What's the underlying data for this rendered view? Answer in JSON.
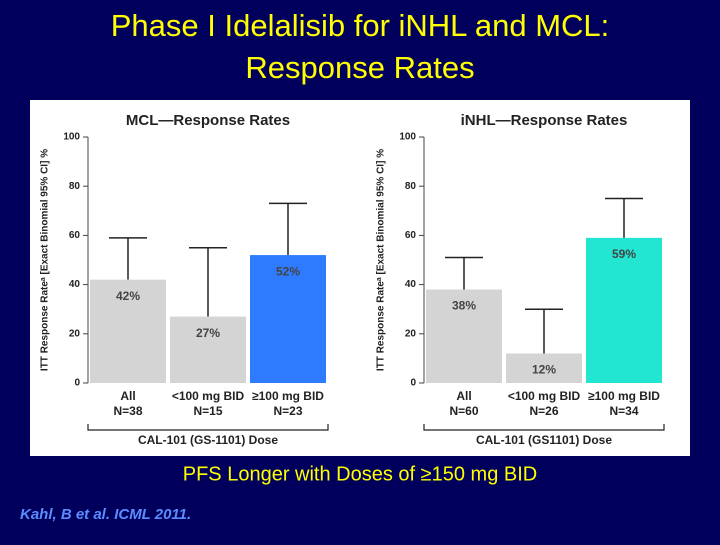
{
  "title": [
    "Phase I Idelalisib for iNHL and MCL:",
    "Response Rates"
  ],
  "subtitle": "PFS Longer with Doses of ≥150 mg BID",
  "citation": "Kahl, B et al. ICML 2011.",
  "chart_data": [
    {
      "type": "bar",
      "title": "MCL—Response Rates",
      "ylabel": "ITT Response Rateᵃ [Exact Binomial 95% CI] %",
      "xlabel": "CAL-101 (GS-1101) Dose",
      "categories": [
        "All",
        "<100 mg BID",
        "≥100 mg BID"
      ],
      "category_counts": [
        "N=38",
        "N=15",
        "N=23"
      ],
      "values": [
        42,
        27,
        52
      ],
      "value_labels": [
        "42%",
        "27%",
        "52%"
      ],
      "ci_upper": [
        59,
        55,
        73
      ],
      "colors": [
        "#d4d4d4",
        "#d4d4d4",
        "#2f7bff"
      ],
      "ylim": [
        0,
        100
      ],
      "yticks": [
        0,
        20,
        40,
        60,
        80,
        100
      ]
    },
    {
      "type": "bar",
      "title": "iNHL—Response Rates",
      "ylabel": "ITT Response Rateᵃ [Exact Binomial 95% CI] %",
      "xlabel": "CAL-101 (GS1101) Dose",
      "categories": [
        "All",
        "<100 mg BID",
        "≥100 mg BID"
      ],
      "category_counts": [
        "N=60",
        "N=26",
        "N=34"
      ],
      "values": [
        38,
        12,
        59
      ],
      "value_labels": [
        "38%",
        "12%",
        "59%"
      ],
      "ci_upper": [
        51,
        30,
        75
      ],
      "colors": [
        "#d4d4d4",
        "#d4d4d4",
        "#22e6d2"
      ],
      "ylim": [
        0,
        100
      ],
      "yticks": [
        0,
        20,
        40,
        60,
        80,
        100
      ]
    }
  ]
}
